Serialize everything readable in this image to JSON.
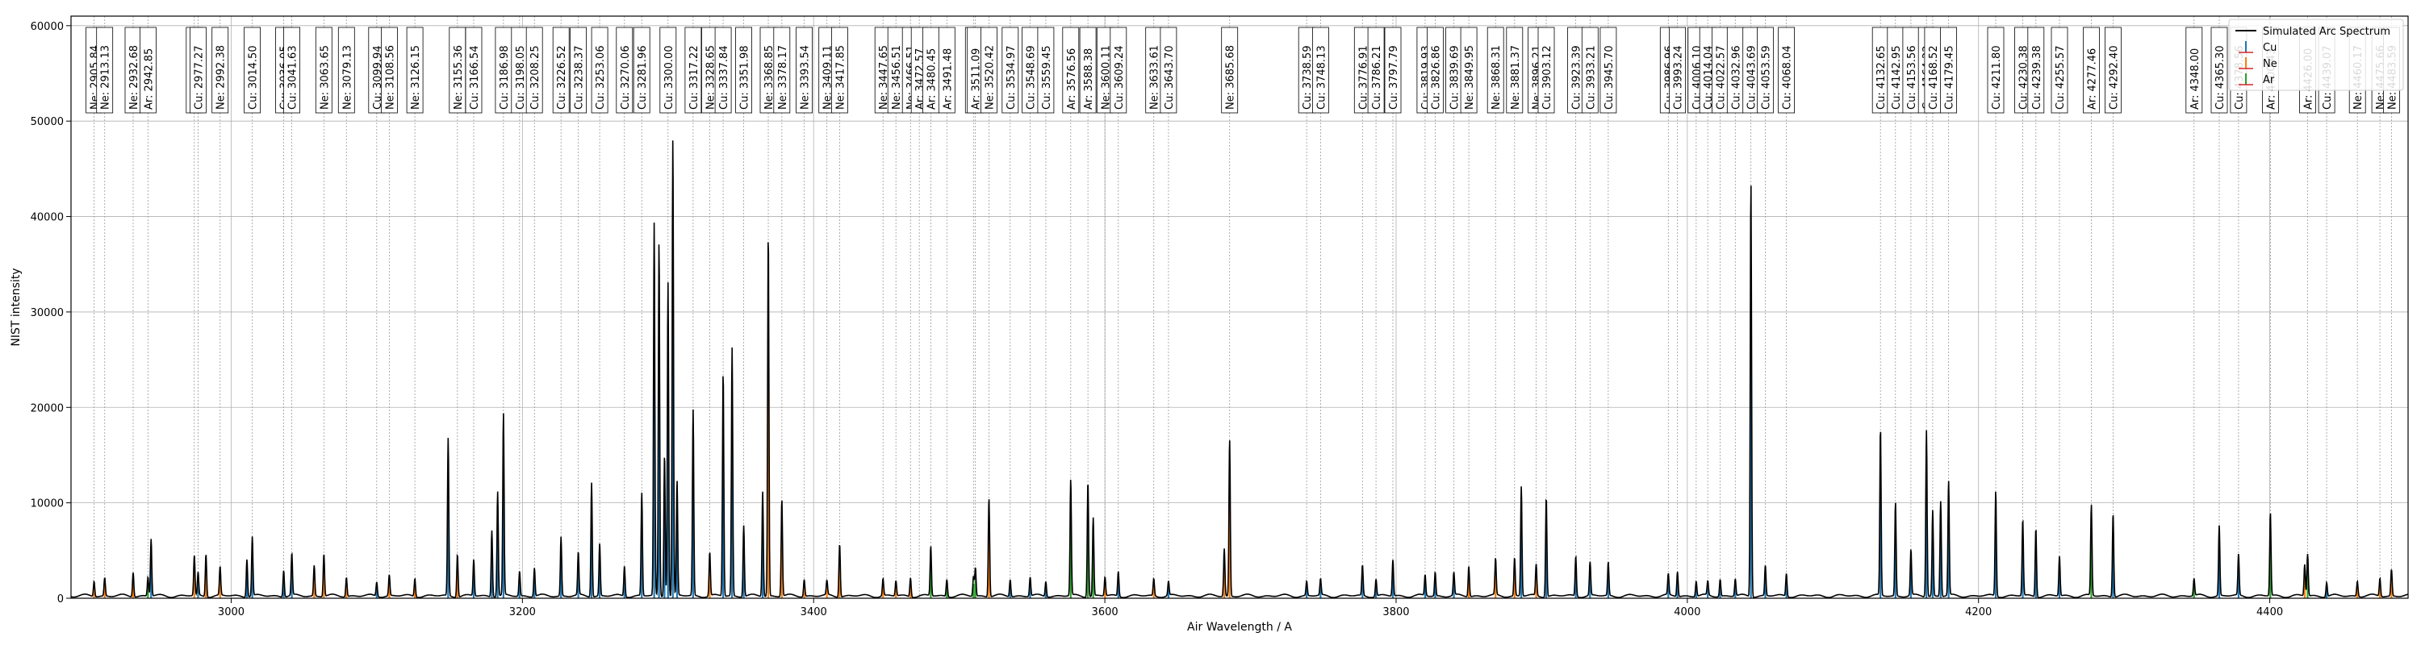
{
  "chart_data": {
    "type": "line",
    "xlabel": "Air Wavelength / A",
    "ylabel": "NIST intensity",
    "xlim": [
      2890,
      4495
    ],
    "ylim": [
      0,
      61000
    ],
    "x_ticks": [
      3000,
      3200,
      3400,
      3600,
      3800,
      4000,
      4200,
      4400
    ],
    "y_ticks": [
      0,
      10000,
      20000,
      30000,
      40000,
      50000,
      60000
    ],
    "grid": true,
    "legend_position": "top-right",
    "legend": [
      {
        "name": "Simulated Arc Spectrum",
        "color": "#000000",
        "kind": "line"
      },
      {
        "name": "Cu",
        "color": "#1f77b4",
        "kind": "stem"
      },
      {
        "name": "Ne",
        "color": "#ff7f0e",
        "kind": "stem"
      },
      {
        "name": "Ar",
        "color": "#2ca02c",
        "kind": "stem"
      }
    ],
    "line_labels": [
      {
        "el": "Ne",
        "wl": "2905.84"
      },
      {
        "el": "Ne",
        "wl": "2913.13"
      },
      {
        "el": "Ne",
        "wl": "2932.68"
      },
      {
        "el": "Ar",
        "wl": "2942.85"
      },
      {
        "el": "Ne",
        "wl": "2974.67"
      },
      {
        "el": "Cu",
        "wl": "2977.27"
      },
      {
        "el": "Ne",
        "wl": "2992.38"
      },
      {
        "el": "Cu",
        "wl": "3014.50"
      },
      {
        "el": "Cu",
        "wl": "3036.05"
      },
      {
        "el": "Cu",
        "wl": "3041.63"
      },
      {
        "el": "Ne",
        "wl": "3063.65"
      },
      {
        "el": "Ne",
        "wl": "3079.13"
      },
      {
        "el": "Cu",
        "wl": "3099.94"
      },
      {
        "el": "Ne",
        "wl": "3108.56"
      },
      {
        "el": "Ne",
        "wl": "3126.15"
      },
      {
        "el": "Ne",
        "wl": "3155.36"
      },
      {
        "el": "Cu",
        "wl": "3166.54"
      },
      {
        "el": "Cu",
        "wl": "3186.98"
      },
      {
        "el": "Cu",
        "wl": "3198.05"
      },
      {
        "el": "Cu",
        "wl": "3208.25"
      },
      {
        "el": "Cu",
        "wl": "3226.52"
      },
      {
        "el": "Cu",
        "wl": "3238.37"
      },
      {
        "el": "Cu",
        "wl": "3253.06"
      },
      {
        "el": "Cu",
        "wl": "3270.06"
      },
      {
        "el": "Cu",
        "wl": "3281.96"
      },
      {
        "el": "Cu",
        "wl": "3300.00"
      },
      {
        "el": "Cu",
        "wl": "3317.22"
      },
      {
        "el": "Ne",
        "wl": "3328.65"
      },
      {
        "el": "Cu",
        "wl": "3337.84"
      },
      {
        "el": "Cu",
        "wl": "3351.98"
      },
      {
        "el": "Ne",
        "wl": "3368.85"
      },
      {
        "el": "Ne",
        "wl": "3378.17"
      },
      {
        "el": "Ne",
        "wl": "3393.54"
      },
      {
        "el": "Ne",
        "wl": "3409.11"
      },
      {
        "el": "Ne",
        "wl": "3417.85"
      },
      {
        "el": "Ne",
        "wl": "3447.65"
      },
      {
        "el": "Ne",
        "wl": "3456.51"
      },
      {
        "el": "Ne",
        "wl": "3466.51"
      },
      {
        "el": "Ar",
        "wl": "3472.57"
      },
      {
        "el": "Ar",
        "wl": "3480.45"
      },
      {
        "el": "Ar",
        "wl": "3491.48"
      },
      {
        "el": "Ar",
        "wl": "3509.78"
      },
      {
        "el": "Ar",
        "wl": "3511.09"
      },
      {
        "el": "Ne",
        "wl": "3520.42"
      },
      {
        "el": "Cu",
        "wl": "3534.97"
      },
      {
        "el": "Cu",
        "wl": "3548.69"
      },
      {
        "el": "Cu",
        "wl": "3559.45"
      },
      {
        "el": "Ar",
        "wl": "3576.56"
      },
      {
        "el": "Ar",
        "wl": "3588.38"
      },
      {
        "el": "Ne",
        "wl": "3600.11"
      },
      {
        "el": "Cu",
        "wl": "3609.24"
      },
      {
        "el": "Ne",
        "wl": "3633.61"
      },
      {
        "el": "Cu",
        "wl": "3643.70"
      },
      {
        "el": "Ne",
        "wl": "3685.68"
      },
      {
        "el": "Cu",
        "wl": "3738.59"
      },
      {
        "el": "Cu",
        "wl": "3748.13"
      },
      {
        "el": "Cu",
        "wl": "3776.91"
      },
      {
        "el": "Cu",
        "wl": "3786.21"
      },
      {
        "el": "Cu",
        "wl": "3797.79"
      },
      {
        "el": "Cu",
        "wl": "3819.93"
      },
      {
        "el": "Cu",
        "wl": "3826.86"
      },
      {
        "el": "Cu",
        "wl": "3839.69"
      },
      {
        "el": "Ne",
        "wl": "3849.95"
      },
      {
        "el": "Ne",
        "wl": "3868.31"
      },
      {
        "el": "Ne",
        "wl": "3881.37"
      },
      {
        "el": "Ne",
        "wl": "3896.21"
      },
      {
        "el": "Cu",
        "wl": "3903.12"
      },
      {
        "el": "Cu",
        "wl": "3923.39"
      },
      {
        "el": "Cu",
        "wl": "3933.21"
      },
      {
        "el": "Cu",
        "wl": "3945.70"
      },
      {
        "el": "Cu",
        "wl": "3986.96"
      },
      {
        "el": "Cu",
        "wl": "3993.24"
      },
      {
        "el": "Cu",
        "wl": "4006.10"
      },
      {
        "el": "Cu",
        "wl": "4014.04"
      },
      {
        "el": "Cu",
        "wl": "4022.57"
      },
      {
        "el": "Cu",
        "wl": "4032.96"
      },
      {
        "el": "Cu",
        "wl": "4043.69"
      },
      {
        "el": "Cu",
        "wl": "4053.59"
      },
      {
        "el": "Cu",
        "wl": "4068.04"
      },
      {
        "el": "Cu",
        "wl": "4132.65"
      },
      {
        "el": "Cu",
        "wl": "4142.95"
      },
      {
        "el": "Cu",
        "wl": "4153.56"
      },
      {
        "el": "Cu",
        "wl": "4164.22"
      },
      {
        "el": "Cu",
        "wl": "4168.52"
      },
      {
        "el": "Cu",
        "wl": "4179.45"
      },
      {
        "el": "Cu",
        "wl": "4211.80"
      },
      {
        "el": "Cu",
        "wl": "4230.38"
      },
      {
        "el": "Cu",
        "wl": "4239.38"
      },
      {
        "el": "Cu",
        "wl": "4255.57"
      },
      {
        "el": "Ar",
        "wl": "4277.46"
      },
      {
        "el": "Cu",
        "wl": "4292.40"
      },
      {
        "el": "Ar",
        "wl": "4348.00"
      },
      {
        "el": "Cu",
        "wl": "4365.30"
      },
      {
        "el": "Cu",
        "wl": "4378.56"
      },
      {
        "el": "Ar",
        "wl": "4400.43"
      },
      {
        "el": "Ar",
        "wl": "4426.00"
      },
      {
        "el": "Cu",
        "wl": "4439.07"
      },
      {
        "el": "Ne",
        "wl": "4460.17"
      },
      {
        "el": "Ne",
        "wl": "4475.66"
      },
      {
        "el": "Ne",
        "wl": "4483.59"
      }
    ],
    "peaks": [
      {
        "el": "Ne",
        "x": 2905.84,
        "y": 1600
      },
      {
        "el": "Ne",
        "x": 2913.13,
        "y": 1900
      },
      {
        "el": "Ne",
        "x": 2932.68,
        "y": 2600
      },
      {
        "el": "Ar",
        "x": 2942.85,
        "y": 2000
      },
      {
        "el": "Cu",
        "x": 2945.0,
        "y": 6000
      },
      {
        "el": "Ne",
        "x": 2974.67,
        "y": 4200
      },
      {
        "el": "Cu",
        "x": 2977.27,
        "y": 2400
      },
      {
        "el": "Ne",
        "x": 2982.67,
        "y": 4500
      },
      {
        "el": "Ne",
        "x": 2992.38,
        "y": 3000
      },
      {
        "el": "Cu",
        "x": 3010.8,
        "y": 4000
      },
      {
        "el": "Cu",
        "x": 3014.5,
        "y": 6200
      },
      {
        "el": "Cu",
        "x": 3036.05,
        "y": 2800
      },
      {
        "el": "Cu",
        "x": 3041.63,
        "y": 4400
      },
      {
        "el": "Ne",
        "x": 3057.0,
        "y": 3200
      },
      {
        "el": "Ne",
        "x": 3063.65,
        "y": 4500
      },
      {
        "el": "Ne",
        "x": 3079.13,
        "y": 2000
      },
      {
        "el": "Cu",
        "x": 3099.94,
        "y": 1500
      },
      {
        "el": "Ne",
        "x": 3108.56,
        "y": 2200
      },
      {
        "el": "Ne",
        "x": 3126.15,
        "y": 1900
      },
      {
        "el": "Cu",
        "x": 3149.0,
        "y": 16500
      },
      {
        "el": "Ne",
        "x": 3155.36,
        "y": 4500
      },
      {
        "el": "Cu",
        "x": 3166.54,
        "y": 3800
      },
      {
        "el": "Cu",
        "x": 3179.0,
        "y": 7000
      },
      {
        "el": "Cu",
        "x": 3183.0,
        "y": 11000
      },
      {
        "el": "Cu",
        "x": 3186.98,
        "y": 19000
      },
      {
        "el": "Cu",
        "x": 3198.05,
        "y": 2600
      },
      {
        "el": "Cu",
        "x": 3208.25,
        "y": 3000
      },
      {
        "el": "Cu",
        "x": 3226.52,
        "y": 6200
      },
      {
        "el": "Cu",
        "x": 3238.37,
        "y": 4500
      },
      {
        "el": "Cu",
        "x": 3247.5,
        "y": 12000
      },
      {
        "el": "Cu",
        "x": 3253.06,
        "y": 5500
      },
      {
        "el": "Cu",
        "x": 3270.06,
        "y": 3200
      },
      {
        "el": "Cu",
        "x": 3281.96,
        "y": 10800
      },
      {
        "el": "Cu",
        "x": 3290.5,
        "y": 39000
      },
      {
        "el": "Cu",
        "x": 3293.8,
        "y": 37000
      },
      {
        "el": "Cu",
        "x": 3297.6,
        "y": 15000
      },
      {
        "el": "Cu",
        "x": 3300.0,
        "y": 33000
      },
      {
        "el": "Cu",
        "x": 3303.3,
        "y": 48000
      },
      {
        "el": "Cu",
        "x": 3306.2,
        "y": 12000
      },
      {
        "el": "Cu",
        "x": 3317.22,
        "y": 19500
      },
      {
        "el": "Ne",
        "x": 3328.65,
        "y": 4600
      },
      {
        "el": "Cu",
        "x": 3337.84,
        "y": 23500
      },
      {
        "el": "Cu",
        "x": 3344.0,
        "y": 26000
      },
      {
        "el": "Cu",
        "x": 3351.98,
        "y": 7500
      },
      {
        "el": "Cu",
        "x": 3365.0,
        "y": 11000
      },
      {
        "el": "Ne",
        "x": 3368.85,
        "y": 38000
      },
      {
        "el": "Ne",
        "x": 3378.17,
        "y": 10200
      },
      {
        "el": "Ne",
        "x": 3393.54,
        "y": 1800
      },
      {
        "el": "Ne",
        "x": 3409.11,
        "y": 1500
      },
      {
        "el": "Ne",
        "x": 3417.85,
        "y": 5600
      },
      {
        "el": "Ne",
        "x": 3447.65,
        "y": 1800
      },
      {
        "el": "Ne",
        "x": 3456.51,
        "y": 1600
      },
      {
        "el": "Ne",
        "x": 3466.51,
        "y": 2000
      },
      {
        "el": "Ar",
        "x": 3480.45,
        "y": 5200
      },
      {
        "el": "Ar",
        "x": 3491.48,
        "y": 1800
      },
      {
        "el": "Ar",
        "x": 3509.78,
        "y": 2100
      },
      {
        "el": "Ar",
        "x": 3511.09,
        "y": 3000
      },
      {
        "el": "Ne",
        "x": 3520.42,
        "y": 10400
      },
      {
        "el": "Cu",
        "x": 3534.97,
        "y": 1800
      },
      {
        "el": "Cu",
        "x": 3548.69,
        "y": 2000
      },
      {
        "el": "Cu",
        "x": 3559.45,
        "y": 1600
      },
      {
        "el": "Ar",
        "x": 3576.56,
        "y": 12200
      },
      {
        "el": "Ar",
        "x": 3588.38,
        "y": 12200
      },
      {
        "el": "Ar",
        "x": 3592.0,
        "y": 8200
      },
      {
        "el": "Ne",
        "x": 3600.11,
        "y": 2000
      },
      {
        "el": "Cu",
        "x": 3609.24,
        "y": 2600
      },
      {
        "el": "Ne",
        "x": 3633.61,
        "y": 1800
      },
      {
        "el": "Cu",
        "x": 3643.7,
        "y": 1500
      },
      {
        "el": "Ne",
        "x": 3682.0,
        "y": 5000
      },
      {
        "el": "Ne",
        "x": 3685.68,
        "y": 16500
      },
      {
        "el": "Cu",
        "x": 3738.59,
        "y": 1500
      },
      {
        "el": "Cu",
        "x": 3748.13,
        "y": 1700
      },
      {
        "el": "Cu",
        "x": 3776.91,
        "y": 3200
      },
      {
        "el": "Cu",
        "x": 3786.21,
        "y": 1800
      },
      {
        "el": "Cu",
        "x": 3797.79,
        "y": 3800
      },
      {
        "el": "Cu",
        "x": 3819.93,
        "y": 2200
      },
      {
        "el": "Cu",
        "x": 3826.86,
        "y": 2500
      },
      {
        "el": "Cu",
        "x": 3839.69,
        "y": 2400
      },
      {
        "el": "Ne",
        "x": 3849.95,
        "y": 3200
      },
      {
        "el": "Ne",
        "x": 3868.31,
        "y": 3800
      },
      {
        "el": "Ne",
        "x": 3881.37,
        "y": 4000
      },
      {
        "el": "Cu",
        "x": 3886.0,
        "y": 11500
      },
      {
        "el": "Ne",
        "x": 3896.21,
        "y": 3300
      },
      {
        "el": "Cu",
        "x": 3903.12,
        "y": 10500
      },
      {
        "el": "Cu",
        "x": 3923.39,
        "y": 4200
      },
      {
        "el": "Cu",
        "x": 3933.21,
        "y": 3500
      },
      {
        "el": "Cu",
        "x": 3945.7,
        "y": 3500
      },
      {
        "el": "Cu",
        "x": 3986.96,
        "y": 2200
      },
      {
        "el": "Cu",
        "x": 3993.24,
        "y": 2600
      },
      {
        "el": "Cu",
        "x": 4006.1,
        "y": 1600
      },
      {
        "el": "Cu",
        "x": 4014.04,
        "y": 1500
      },
      {
        "el": "Cu",
        "x": 4022.57,
        "y": 1800
      },
      {
        "el": "Cu",
        "x": 4032.96,
        "y": 1800
      },
      {
        "el": "Cu",
        "x": 4043.69,
        "y": 43500
      },
      {
        "el": "Cu",
        "x": 4053.59,
        "y": 3200
      },
      {
        "el": "Cu",
        "x": 4068.04,
        "y": 2400
      },
      {
        "el": "Cu",
        "x": 4132.65,
        "y": 17500
      },
      {
        "el": "Cu",
        "x": 4142.95,
        "y": 9800
      },
      {
        "el": "Cu",
        "x": 4153.56,
        "y": 4800
      },
      {
        "el": "Cu",
        "x": 4164.22,
        "y": 17500
      },
      {
        "el": "Cu",
        "x": 4168.52,
        "y": 9000
      },
      {
        "el": "Cu",
        "x": 4174.0,
        "y": 10000
      },
      {
        "el": "Cu",
        "x": 4179.45,
        "y": 12000
      },
      {
        "el": "Cu",
        "x": 4211.8,
        "y": 11000
      },
      {
        "el": "Cu",
        "x": 4230.38,
        "y": 8000
      },
      {
        "el": "Cu",
        "x": 4239.38,
        "y": 7200
      },
      {
        "el": "Cu",
        "x": 4255.57,
        "y": 4200
      },
      {
        "el": "Ar",
        "x": 4277.46,
        "y": 9500
      },
      {
        "el": "Cu",
        "x": 4292.4,
        "y": 8800
      },
      {
        "el": "Ar",
        "x": 4348.0,
        "y": 1800
      },
      {
        "el": "Cu",
        "x": 4365.3,
        "y": 7400
      },
      {
        "el": "Cu",
        "x": 4378.56,
        "y": 4300
      },
      {
        "el": "Ar",
        "x": 4400.43,
        "y": 8700
      },
      {
        "el": "Ne",
        "x": 4424.0,
        "y": 3300
      },
      {
        "el": "Ar",
        "x": 4426.0,
        "y": 4400
      },
      {
        "el": "Cu",
        "x": 4439.07,
        "y": 1500
      },
      {
        "el": "Ne",
        "x": 4460.17,
        "y": 1600
      },
      {
        "el": "Ne",
        "x": 4475.66,
        "y": 1900
      },
      {
        "el": "Ne",
        "x": 4483.59,
        "y": 2800
      }
    ]
  }
}
